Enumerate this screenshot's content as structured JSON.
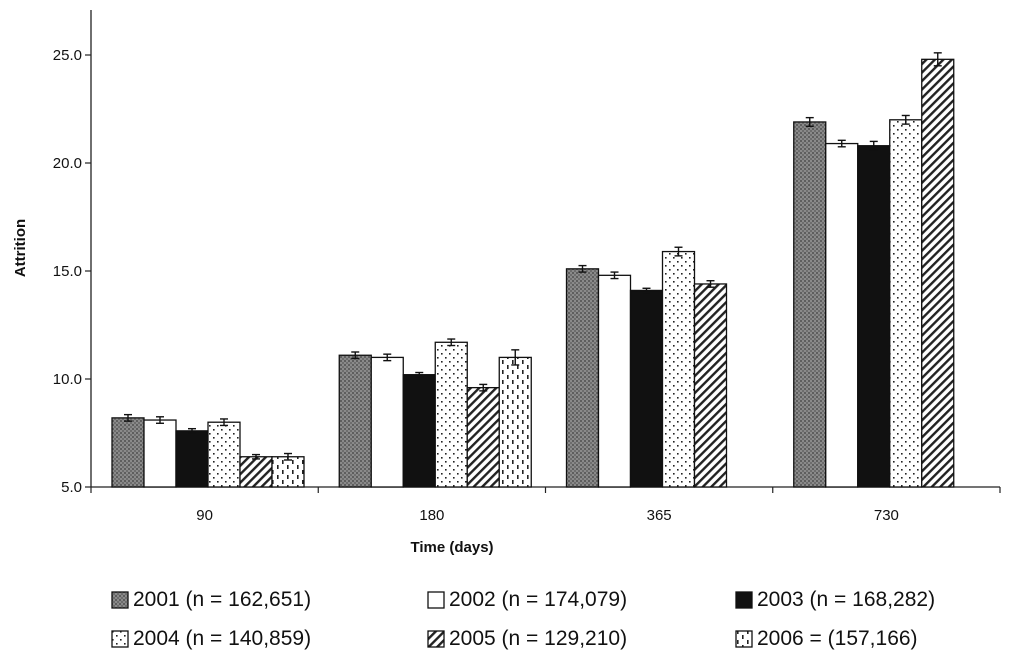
{
  "chart_data": {
    "type": "bar",
    "title": "",
    "xlabel": "Time (days)",
    "ylabel": "Attrition",
    "ylim": [
      5.0,
      25.0
    ],
    "yticks": [
      "5.0",
      "10.0",
      "15.0",
      "20.0",
      "25.0"
    ],
    "ytick_values": [
      5,
      10,
      15,
      20,
      25
    ],
    "categories": [
      "90",
      "180",
      "365",
      "730"
    ],
    "grid": false,
    "legend_position": "bottom",
    "error_bars": true,
    "series": [
      {
        "name": "2001 (n = 162,651)",
        "label": "2001 (n = 162,651)",
        "pattern": "gray",
        "values": [
          8.2,
          11.1,
          15.1,
          21.9
        ],
        "errors": [
          0.15,
          0.15,
          0.15,
          0.2
        ]
      },
      {
        "name": "2002 (n = 174,079)",
        "label": "2002 (n = 174,079)",
        "pattern": "white",
        "values": [
          8.1,
          11.0,
          14.8,
          20.9
        ],
        "errors": [
          0.15,
          0.15,
          0.15,
          0.15
        ]
      },
      {
        "name": "2003 (n = 168,282)",
        "label": "2003 (n = 168,282)",
        "pattern": "black",
        "values": [
          7.6,
          10.2,
          14.1,
          20.8
        ],
        "errors": [
          0.1,
          0.1,
          0.1,
          0.2
        ]
      },
      {
        "name": "2004 (n = 140,859)",
        "label": "2004 (n = 140,859)",
        "pattern": "dots",
        "values": [
          8.0,
          11.7,
          15.9,
          22.0
        ],
        "errors": [
          0.15,
          0.15,
          0.2,
          0.2
        ]
      },
      {
        "name": "2005 (n = 129,210)",
        "label": "2005 (n = 129,210)",
        "pattern": "diagonal",
        "values": [
          6.4,
          9.6,
          14.4,
          24.8
        ],
        "errors": [
          0.1,
          0.15,
          0.15,
          0.3
        ]
      },
      {
        "name": "2006 = (157,166)",
        "label": "2006 = (157,166)",
        "pattern": "dashes",
        "values": [
          6.4,
          11.0,
          null,
          null
        ],
        "errors": [
          0.15,
          0.35,
          null,
          null
        ]
      }
    ]
  }
}
